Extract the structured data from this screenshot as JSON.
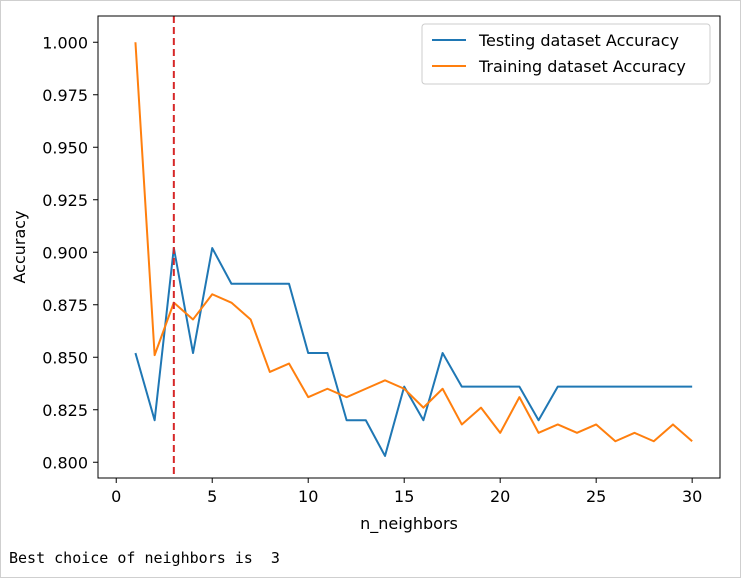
{
  "chart_data": {
    "type": "line",
    "title": "",
    "xlabel": "n_neighbors",
    "ylabel": "Accuracy",
    "xlim": [
      -0.95,
      31.45
    ],
    "ylim": [
      0.7925,
      1.0125
    ],
    "xticks": [
      0,
      5,
      10,
      15,
      20,
      25,
      30
    ],
    "xtick_labels": [
      "0",
      "5",
      "10",
      "15",
      "20",
      "25",
      "30"
    ],
    "yticks": [
      0.8,
      0.825,
      0.85,
      0.875,
      0.9,
      0.925,
      0.95,
      0.975,
      1.0
    ],
    "ytick_labels": [
      "0.800",
      "0.825",
      "0.850",
      "0.875",
      "0.900",
      "0.925",
      "0.950",
      "0.975",
      "1.000"
    ],
    "grid": false,
    "legend_position": "upper right",
    "x": [
      1,
      2,
      3,
      4,
      5,
      6,
      7,
      8,
      9,
      10,
      11,
      12,
      13,
      14,
      15,
      16,
      17,
      18,
      19,
      20,
      21,
      22,
      23,
      24,
      25,
      26,
      27,
      28,
      29,
      30
    ],
    "series": [
      {
        "name": "Testing dataset Accuracy",
        "color": "#1f77b4",
        "values": [
          0.852,
          0.82,
          0.902,
          0.852,
          0.902,
          0.885,
          0.885,
          0.885,
          0.885,
          0.852,
          0.852,
          0.82,
          0.82,
          0.803,
          0.836,
          0.82,
          0.852,
          0.836,
          0.836,
          0.836,
          0.836,
          0.82,
          0.836,
          0.836,
          0.836,
          0.836,
          0.836,
          0.836,
          0.836,
          0.836
        ]
      },
      {
        "name": "Training dataset Accuracy",
        "color": "#ff7f0e",
        "values": [
          1.0,
          0.851,
          0.876,
          0.868,
          0.88,
          0.876,
          0.868,
          0.843,
          0.847,
          0.831,
          0.835,
          0.831,
          0.835,
          0.839,
          0.835,
          0.826,
          0.835,
          0.818,
          0.826,
          0.814,
          0.831,
          0.814,
          0.818,
          0.814,
          0.818,
          0.81,
          0.814,
          0.81,
          0.818,
          0.81
        ]
      }
    ],
    "vline": {
      "x": 3,
      "color": "#d62728",
      "style": "dashed"
    }
  },
  "output_text": "Best choice of neighbors is  3"
}
